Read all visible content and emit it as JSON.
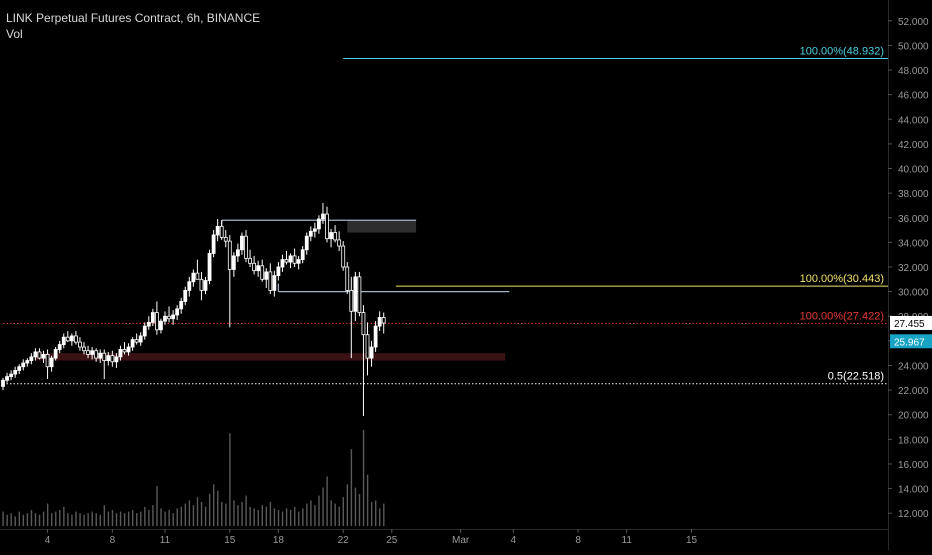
{
  "legend": {
    "title": "LINK Perpetual Futures Contract, 6h, BINANCE",
    "indicator": "Vol"
  },
  "colors": {
    "background": "#000000",
    "candle_up": "#ffffff",
    "candle_down": "#ffffff",
    "volume": "#5a5a5a",
    "cyan": "#4dd0e1",
    "yellow": "#f2e36b",
    "red": "#e53935",
    "grey_line": "#aab4c8",
    "axis_text": "#9a9a9a",
    "white_label": "#ffffff",
    "current_price_bg": "#16a3c4",
    "zone": "#3a1214",
    "resistance_zone": "#2e2e2e"
  },
  "chart_data": {
    "type": "candlestick",
    "timeframe": "6h",
    "ylim": [
      10.8,
      53.2
    ],
    "y_ticks": [
      "12.000",
      "14.000",
      "16.000",
      "18.000",
      "20.000",
      "22.000",
      "24.000",
      "26.000",
      "28.000",
      "30.000",
      "32.000",
      "34.000",
      "36.000",
      "38.000",
      "40.000",
      "42.000",
      "44.000",
      "46.000",
      "48.000",
      "50.000",
      "52.000"
    ],
    "y_tick_values": [
      12,
      14,
      16,
      18,
      20,
      22,
      24,
      26,
      28,
      30,
      32,
      34,
      36,
      38,
      40,
      42,
      44,
      46,
      48,
      50,
      52
    ],
    "x_ticks": [
      "4",
      "8",
      "11",
      "15",
      "18",
      "22",
      "25",
      "Mar",
      "4",
      "8",
      "11",
      "15"
    ],
    "x_tick_bar_index": [
      11,
      27,
      40,
      56,
      68,
      84,
      96,
      113,
      126,
      142,
      154,
      170
    ],
    "candles_ohlc": [
      [
        22.3,
        23.0,
        22.0,
        22.8
      ],
      [
        22.8,
        23.4,
        22.6,
        23.1
      ],
      [
        23.1,
        23.6,
        22.8,
        23.3
      ],
      [
        23.3,
        23.9,
        23.0,
        23.6
      ],
      [
        23.6,
        24.1,
        23.3,
        23.9
      ],
      [
        23.9,
        24.5,
        23.6,
        24.2
      ],
      [
        24.2,
        24.6,
        23.9,
        24.4
      ],
      [
        24.4,
        25.0,
        24.1,
        24.7
      ],
      [
        24.7,
        25.4,
        24.4,
        25.1
      ],
      [
        25.1,
        25.4,
        24.5,
        24.6
      ],
      [
        24.6,
        25.2,
        24.2,
        24.9
      ],
      [
        24.9,
        25.3,
        22.9,
        23.9
      ],
      [
        23.9,
        24.8,
        23.5,
        24.6
      ],
      [
        24.6,
        25.5,
        24.4,
        25.3
      ],
      [
        25.3,
        26.0,
        25.0,
        25.7
      ],
      [
        25.7,
        26.6,
        25.4,
        26.3
      ],
      [
        26.3,
        26.8,
        25.9,
        26.0
      ],
      [
        26.0,
        26.6,
        25.6,
        26.4
      ],
      [
        26.4,
        26.8,
        25.7,
        25.9
      ],
      [
        25.9,
        26.3,
        25.2,
        25.5
      ],
      [
        25.5,
        25.9,
        24.9,
        25.2
      ],
      [
        25.2,
        25.6,
        24.6,
        24.9
      ],
      [
        24.9,
        25.5,
        24.5,
        25.2
      ],
      [
        25.2,
        25.4,
        24.3,
        24.6
      ],
      [
        24.6,
        25.3,
        24.2,
        25.0
      ],
      [
        25.0,
        25.3,
        22.9,
        24.4
      ],
      [
        24.4,
        25.1,
        24.0,
        24.8
      ],
      [
        24.8,
        25.2,
        23.9,
        24.3
      ],
      [
        24.3,
        25.0,
        23.8,
        24.7
      ],
      [
        24.7,
        25.6,
        24.4,
        25.3
      ],
      [
        25.3,
        25.9,
        24.9,
        25.1
      ],
      [
        25.1,
        25.8,
        24.8,
        25.5
      ],
      [
        25.5,
        26.3,
        25.2,
        26.1
      ],
      [
        26.1,
        26.6,
        25.7,
        25.9
      ],
      [
        25.9,
        26.7,
        25.6,
        26.4
      ],
      [
        26.4,
        27.5,
        26.1,
        27.2
      ],
      [
        27.2,
        28.0,
        26.9,
        27.5
      ],
      [
        27.5,
        28.6,
        27.2,
        28.3
      ],
      [
        28.3,
        29.2,
        26.5,
        26.9
      ],
      [
        26.9,
        27.8,
        26.6,
        27.6
      ],
      [
        27.6,
        28.4,
        27.3,
        28.0
      ],
      [
        28.0,
        28.8,
        27.5,
        27.8
      ],
      [
        27.8,
        28.5,
        27.3,
        28.1
      ],
      [
        28.1,
        28.9,
        27.7,
        28.6
      ],
      [
        28.6,
        29.5,
        28.2,
        29.2
      ],
      [
        29.2,
        30.4,
        28.9,
        30.1
      ],
      [
        30.1,
        31.2,
        29.6,
        30.8
      ],
      [
        30.8,
        31.8,
        30.4,
        31.5
      ],
      [
        31.5,
        32.6,
        31.1,
        31.0
      ],
      [
        31.0,
        31.6,
        29.3,
        30.1
      ],
      [
        30.1,
        31.2,
        29.8,
        30.9
      ],
      [
        30.9,
        33.4,
        30.6,
        33.1
      ],
      [
        33.1,
        35.0,
        32.8,
        34.6
      ],
      [
        34.6,
        35.9,
        34.1,
        35.3
      ],
      [
        35.3,
        35.8,
        34.2,
        34.4
      ],
      [
        34.4,
        35.0,
        33.6,
        34.1
      ],
      [
        34.1,
        34.6,
        27.1,
        31.8
      ],
      [
        31.8,
        33.2,
        31.2,
        32.9
      ],
      [
        32.9,
        33.9,
        32.4,
        33.4
      ],
      [
        33.4,
        34.8,
        33.0,
        34.5
      ],
      [
        34.5,
        35.0,
        32.4,
        32.7
      ],
      [
        32.7,
        33.4,
        32.0,
        32.3
      ],
      [
        32.3,
        32.9,
        31.4,
        31.7
      ],
      [
        31.7,
        32.5,
        31.2,
        32.1
      ],
      [
        32.1,
        32.6,
        30.8,
        31.0
      ],
      [
        31.0,
        31.9,
        30.3,
        31.6
      ],
      [
        31.6,
        32.3,
        29.8,
        30.1
      ],
      [
        30.1,
        31.7,
        29.6,
        31.3
      ],
      [
        31.3,
        32.4,
        30.9,
        32.0
      ],
      [
        32.0,
        33.0,
        31.6,
        32.6
      ],
      [
        32.6,
        33.3,
        32.2,
        32.4
      ],
      [
        32.4,
        33.1,
        31.9,
        32.9
      ],
      [
        32.9,
        33.5,
        32.0,
        32.3
      ],
      [
        32.3,
        32.9,
        31.8,
        32.6
      ],
      [
        32.6,
        33.7,
        32.3,
        33.4
      ],
      [
        33.4,
        34.8,
        33.0,
        34.5
      ],
      [
        34.5,
        35.3,
        34.1,
        34.9
      ],
      [
        34.9,
        35.6,
        34.4,
        35.1
      ],
      [
        35.1,
        36.2,
        34.7,
        35.9
      ],
      [
        35.9,
        37.2,
        35.5,
        36.3
      ],
      [
        36.3,
        36.9,
        34.0,
        34.3
      ],
      [
        34.3,
        35.1,
        33.6,
        34.8
      ],
      [
        34.8,
        35.4,
        34.0,
        34.2
      ],
      [
        34.2,
        34.9,
        33.3,
        33.7
      ],
      [
        33.7,
        34.1,
        31.7,
        32.0
      ],
      [
        32.0,
        32.4,
        29.8,
        30.1
      ],
      [
        30.1,
        31.2,
        24.6,
        28.4
      ],
      [
        28.4,
        31.6,
        27.6,
        31.2
      ],
      [
        31.2,
        31.6,
        28.0,
        28.3
      ],
      [
        28.3,
        28.9,
        19.9,
        26.5
      ],
      [
        26.5,
        27.5,
        23.2,
        24.6
      ],
      [
        24.6,
        26.0,
        23.9,
        25.5
      ],
      [
        25.5,
        27.6,
        25.1,
        27.2
      ],
      [
        27.2,
        28.4,
        26.8,
        27.9
      ],
      [
        27.9,
        28.3,
        26.6,
        27.45
      ]
    ],
    "volumes": [
      0.9,
      0.7,
      0.8,
      0.6,
      0.9,
      0.7,
      0.8,
      1.0,
      0.8,
      0.7,
      0.9,
      1.4,
      0.8,
      0.9,
      1.0,
      1.2,
      0.8,
      0.7,
      0.9,
      0.8,
      0.7,
      0.8,
      0.9,
      0.8,
      0.7,
      1.3,
      0.9,
      1.0,
      0.8,
      0.9,
      0.8,
      0.9,
      1.0,
      0.8,
      0.9,
      1.2,
      1.0,
      1.3,
      2.5,
      1.1,
      0.9,
      1.0,
      0.8,
      1.1,
      1.2,
      1.4,
      1.6,
      1.3,
      1.8,
      1.5,
      1.2,
      2.0,
      2.6,
      2.2,
      1.5,
      1.4,
      5.8,
      1.6,
      1.3,
      1.5,
      1.9,
      1.2,
      1.1,
      1.0,
      1.3,
      1.2,
      1.5,
      1.1,
      1.0,
      0.9,
      1.1,
      1.0,
      1.2,
      0.9,
      1.1,
      1.4,
      1.6,
      1.3,
      1.9,
      2.4,
      3.1,
      1.6,
      1.4,
      1.2,
      1.8,
      2.6,
      4.8,
      2.4,
      2.0,
      6.0,
      3.2,
      1.5,
      1.6,
      1.1,
      1.4
    ],
    "horizontal_levels": [
      {
        "label": "100.00%(48.932)",
        "value": 48.932,
        "color": "cyan",
        "from_bar": 84,
        "to_bar": 195
      },
      {
        "label": "100.00%(30.443)",
        "value": 30.443,
        "color": "yellow",
        "from_bar": 97,
        "to_bar": 195
      },
      {
        "label": "100.00%(27.422)",
        "value": 27.422,
        "color": "red",
        "from_bar": 0,
        "to_bar": 195,
        "dotted": true
      },
      {
        "label": "0.5(22.518)",
        "value": 22.518,
        "color": "white",
        "from_bar": 0,
        "to_bar": 195,
        "dotted": true
      }
    ],
    "boxes": [
      {
        "name": "range-top",
        "top": 35.8,
        "bottom": 30.0,
        "from_bar": 54,
        "to_bar": 85,
        "top_to_bar": 102,
        "bottom_from_bar": 68,
        "bottom_to_bar": 125
      },
      {
        "name": "resistance-zone",
        "top": 35.8,
        "bottom": 34.8,
        "from_bar": 85,
        "to_bar": 102
      },
      {
        "name": "support-zone",
        "top": 25.0,
        "bottom": 24.4,
        "from_bar": 8,
        "to_bar": 124
      }
    ],
    "last_price_label": "27.455",
    "last_price_value": 27.455,
    "highlight_price_label": "25.967",
    "highlight_price_value": 25.967
  }
}
